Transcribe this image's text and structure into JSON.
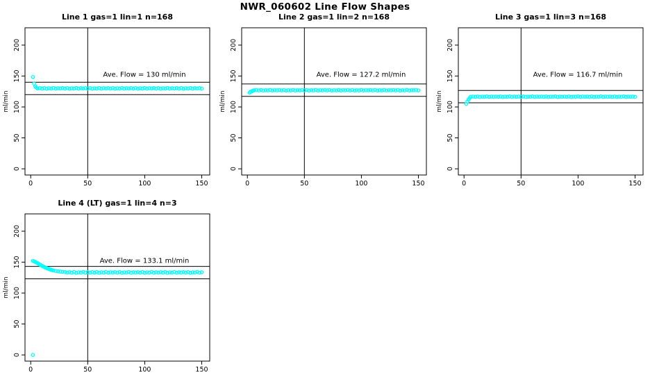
{
  "page": {
    "title": "NWR_060602  Line Flow Shapes"
  },
  "colors": {
    "marker": "#00FFFF",
    "axis": "#000000",
    "background": "#FFFFFF"
  },
  "chart_data": [
    {
      "type": "scatter",
      "title": "Line 1 gas=1 lin=1 n=168",
      "xlabel": "",
      "ylabel": "ml/min",
      "annotation": "Ave. Flow =  130  ml/min",
      "ave_flow": 130,
      "marker": "open-circle",
      "x_ticks": [
        0,
        50,
        100,
        150
      ],
      "y_ticks": [
        0,
        50,
        100,
        150,
        200
      ],
      "xlim": [
        -5,
        157
      ],
      "ylim": [
        -10,
        228
      ],
      "h_ref_lines": [
        140,
        120
      ],
      "v_ref_line": 50,
      "points": [
        [
          2,
          148.5
        ],
        [
          3,
          138
        ],
        [
          4,
          133.5
        ],
        [
          5,
          131.5
        ],
        [
          6,
          130
        ],
        [
          8,
          130.4
        ],
        [
          10,
          129.7
        ],
        [
          12,
          130.6
        ],
        [
          14,
          129.4
        ],
        [
          16,
          130.2
        ],
        [
          18,
          129.8
        ],
        [
          20,
          130.7
        ],
        [
          22,
          129.6
        ],
        [
          24,
          130.3
        ],
        [
          26,
          130
        ],
        [
          28,
          130.4
        ],
        [
          30,
          129.7
        ],
        [
          32,
          130.6
        ],
        [
          34,
          129.4
        ],
        [
          36,
          130.2
        ],
        [
          38,
          129.8
        ],
        [
          40,
          130.7
        ],
        [
          42,
          129.6
        ],
        [
          44,
          130.3
        ],
        [
          46,
          130
        ],
        [
          48,
          130.4
        ],
        [
          50,
          129.7
        ],
        [
          52,
          130.6
        ],
        [
          54,
          129.4
        ],
        [
          56,
          130.2
        ],
        [
          58,
          129.8
        ],
        [
          60,
          130.7
        ],
        [
          62,
          129.6
        ],
        [
          64,
          130.3
        ],
        [
          66,
          130
        ],
        [
          68,
          130.4
        ],
        [
          70,
          129.7
        ],
        [
          72,
          130.6
        ],
        [
          74,
          129.4
        ],
        [
          76,
          130.2
        ],
        [
          78,
          129.8
        ],
        [
          80,
          130.7
        ],
        [
          82,
          129.6
        ],
        [
          84,
          130.3
        ],
        [
          86,
          130
        ],
        [
          88,
          130.4
        ],
        [
          90,
          129.7
        ],
        [
          92,
          130.6
        ],
        [
          94,
          129.4
        ],
        [
          96,
          130.2
        ],
        [
          98,
          129.8
        ],
        [
          100,
          130.7
        ],
        [
          102,
          129.6
        ],
        [
          104,
          130.3
        ],
        [
          106,
          130
        ],
        [
          108,
          130.4
        ],
        [
          110,
          129.7
        ],
        [
          112,
          130.6
        ],
        [
          114,
          129.4
        ],
        [
          116,
          130.2
        ],
        [
          118,
          129.8
        ],
        [
          120,
          130.7
        ],
        [
          122,
          129.6
        ],
        [
          124,
          130.3
        ],
        [
          126,
          130
        ],
        [
          128,
          130.4
        ],
        [
          130,
          129.7
        ],
        [
          132,
          130.6
        ],
        [
          134,
          129.4
        ],
        [
          136,
          130.2
        ],
        [
          138,
          129.8
        ],
        [
          140,
          130.7
        ],
        [
          142,
          129.6
        ],
        [
          144,
          130.3
        ],
        [
          146,
          130
        ],
        [
          148,
          130.4
        ],
        [
          150,
          129.7
        ]
      ]
    },
    {
      "type": "scatter",
      "title": "Line 2 gas=1 lin=2 n=168",
      "xlabel": "",
      "ylabel": "ml/min",
      "annotation": "Ave. Flow =  127.2  ml/min",
      "ave_flow": 127.2,
      "marker": "open-circle",
      "x_ticks": [
        0,
        50,
        100,
        150
      ],
      "y_ticks": [
        0,
        50,
        100,
        150,
        200
      ],
      "xlim": [
        -5,
        157
      ],
      "ylim": [
        -10,
        228
      ],
      "h_ref_lines": [
        137.2,
        117.2
      ],
      "v_ref_line": 50,
      "points": [
        [
          2,
          123
        ],
        [
          3,
          124.5
        ],
        [
          4,
          125.5
        ],
        [
          5,
          126.3
        ],
        [
          6,
          127
        ],
        [
          8,
          127.3
        ],
        [
          10,
          126.8
        ],
        [
          12,
          127.4
        ],
        [
          14,
          126.6
        ],
        [
          16,
          127.1
        ],
        [
          18,
          126.9
        ],
        [
          20,
          127.5
        ],
        [
          22,
          126.7
        ],
        [
          24,
          127.2
        ],
        [
          26,
          127
        ],
        [
          28,
          127.3
        ],
        [
          30,
          126.8
        ],
        [
          32,
          127.4
        ],
        [
          34,
          126.6
        ],
        [
          36,
          127.1
        ],
        [
          38,
          126.9
        ],
        [
          40,
          127.5
        ],
        [
          42,
          126.7
        ],
        [
          44,
          127.2
        ],
        [
          46,
          127
        ],
        [
          48,
          127.3
        ],
        [
          50,
          126.8
        ],
        [
          52,
          127.4
        ],
        [
          54,
          126.6
        ],
        [
          56,
          127.1
        ],
        [
          58,
          126.9
        ],
        [
          60,
          127.5
        ],
        [
          62,
          126.7
        ],
        [
          64,
          127.2
        ],
        [
          66,
          127
        ],
        [
          68,
          127.3
        ],
        [
          70,
          126.8
        ],
        [
          72,
          127.4
        ],
        [
          74,
          126.6
        ],
        [
          76,
          127.1
        ],
        [
          78,
          126.9
        ],
        [
          80,
          127.5
        ],
        [
          82,
          126.7
        ],
        [
          84,
          127.2
        ],
        [
          86,
          127
        ],
        [
          88,
          127.3
        ],
        [
          90,
          126.8
        ],
        [
          92,
          127.4
        ],
        [
          94,
          126.6
        ],
        [
          96,
          127.1
        ],
        [
          98,
          126.9
        ],
        [
          100,
          127.5
        ],
        [
          102,
          126.7
        ],
        [
          104,
          127.2
        ],
        [
          106,
          127
        ],
        [
          108,
          127.3
        ],
        [
          110,
          126.8
        ],
        [
          112,
          127.4
        ],
        [
          114,
          126.6
        ],
        [
          116,
          127.1
        ],
        [
          118,
          126.9
        ],
        [
          120,
          127.5
        ],
        [
          122,
          126.7
        ],
        [
          124,
          127.2
        ],
        [
          126,
          127
        ],
        [
          128,
          127.3
        ],
        [
          130,
          126.8
        ],
        [
          132,
          127.4
        ],
        [
          134,
          126.6
        ],
        [
          136,
          127.1
        ],
        [
          138,
          126.9
        ],
        [
          140,
          127.5
        ],
        [
          142,
          126.7
        ],
        [
          144,
          127.2
        ],
        [
          146,
          127
        ],
        [
          148,
          127.3
        ],
        [
          150,
          126.8
        ]
      ]
    },
    {
      "type": "scatter",
      "title": "Line 3 gas=1 lin=3 n=168",
      "xlabel": "",
      "ylabel": "ml/min",
      "annotation": "Ave. Flow =  116.7  ml/min",
      "ave_flow": 116.7,
      "marker": "open-circle",
      "x_ticks": [
        0,
        50,
        100,
        150
      ],
      "y_ticks": [
        0,
        50,
        100,
        150,
        200
      ],
      "xlim": [
        -5,
        157
      ],
      "ylim": [
        -10,
        228
      ],
      "h_ref_lines": [
        126.7,
        106.7
      ],
      "v_ref_line": 50,
      "points": [
        [
          2,
          105
        ],
        [
          3,
          109
        ],
        [
          4,
          112
        ],
        [
          5,
          114.5
        ],
        [
          6,
          116.5
        ],
        [
          8,
          116.8
        ],
        [
          10,
          116.3
        ],
        [
          12,
          116.9
        ],
        [
          14,
          116.1
        ],
        [
          16,
          116.6
        ],
        [
          18,
          116.4
        ],
        [
          20,
          117
        ],
        [
          22,
          116.2
        ],
        [
          24,
          116.7
        ],
        [
          26,
          116.5
        ],
        [
          28,
          116.8
        ],
        [
          30,
          116.3
        ],
        [
          32,
          116.9
        ],
        [
          34,
          116.1
        ],
        [
          36,
          116.6
        ],
        [
          38,
          116.4
        ],
        [
          40,
          117
        ],
        [
          42,
          116.2
        ],
        [
          44,
          116.7
        ],
        [
          46,
          116.5
        ],
        [
          48,
          116.8
        ],
        [
          50,
          116.3
        ],
        [
          52,
          116.9
        ],
        [
          54,
          116.1
        ],
        [
          56,
          116.6
        ],
        [
          58,
          116.4
        ],
        [
          60,
          117
        ],
        [
          62,
          116.2
        ],
        [
          64,
          116.7
        ],
        [
          66,
          116.5
        ],
        [
          68,
          116.8
        ],
        [
          70,
          116.3
        ],
        [
          72,
          116.9
        ],
        [
          74,
          116.1
        ],
        [
          76,
          116.6
        ],
        [
          78,
          116.4
        ],
        [
          80,
          117
        ],
        [
          82,
          116.2
        ],
        [
          84,
          116.7
        ],
        [
          86,
          116.5
        ],
        [
          88,
          116.8
        ],
        [
          90,
          116.3
        ],
        [
          92,
          116.9
        ],
        [
          94,
          116.1
        ],
        [
          96,
          116.6
        ],
        [
          98,
          116.4
        ],
        [
          100,
          117
        ],
        [
          102,
          116.2
        ],
        [
          104,
          116.7
        ],
        [
          106,
          116.5
        ],
        [
          108,
          116.8
        ],
        [
          110,
          116.3
        ],
        [
          112,
          116.9
        ],
        [
          114,
          116.1
        ],
        [
          116,
          116.6
        ],
        [
          118,
          116.4
        ],
        [
          120,
          117
        ],
        [
          122,
          116.2
        ],
        [
          124,
          116.7
        ],
        [
          126,
          116.5
        ],
        [
          128,
          116.8
        ],
        [
          130,
          116.3
        ],
        [
          132,
          116.9
        ],
        [
          134,
          116.1
        ],
        [
          136,
          116.6
        ],
        [
          138,
          116.4
        ],
        [
          140,
          117
        ],
        [
          142,
          116.2
        ],
        [
          144,
          116.7
        ],
        [
          146,
          116.5
        ],
        [
          148,
          116.8
        ],
        [
          150,
          116.3
        ]
      ]
    },
    {
      "type": "scatter",
      "title": "Line 4 (LT) gas=1 lin=4 n=3",
      "xlabel": "",
      "ylabel": "ml/min",
      "annotation": "Ave. Flow =  133.1  ml/min",
      "ave_flow": 133.1,
      "marker": "open-circle",
      "x_ticks": [
        0,
        50,
        100,
        150
      ],
      "y_ticks": [
        0,
        50,
        100,
        150,
        200
      ],
      "xlim": [
        -5,
        157
      ],
      "ylim": [
        -10,
        228
      ],
      "h_ref_lines": [
        143.1,
        123.1
      ],
      "v_ref_line": 50,
      "points": [
        [
          2,
          0
        ],
        [
          2,
          152
        ],
        [
          3,
          151.2
        ],
        [
          4,
          150.3
        ],
        [
          5,
          149.4
        ],
        [
          6,
          148.4
        ],
        [
          7,
          147.3
        ],
        [
          8,
          146.2
        ],
        [
          9,
          145.1
        ],
        [
          10,
          144
        ],
        [
          11,
          143
        ],
        [
          12,
          142
        ],
        [
          13,
          141.2
        ],
        [
          14,
          140.4
        ],
        [
          15,
          139.6
        ],
        [
          16,
          138.9
        ],
        [
          17,
          138.2
        ],
        [
          18,
          137.6
        ],
        [
          19,
          137
        ],
        [
          20,
          136.5
        ],
        [
          22,
          135.8
        ],
        [
          24,
          135.2
        ],
        [
          26,
          134.7
        ],
        [
          28,
          134.3
        ],
        [
          30,
          134
        ],
        [
          32,
          133.4
        ],
        [
          34,
          133.8
        ],
        [
          36,
          133.1
        ],
        [
          38,
          134
        ],
        [
          40,
          132.8
        ],
        [
          42,
          133.6
        ],
        [
          44,
          133.2
        ],
        [
          46,
          134.1
        ],
        [
          48,
          133
        ],
        [
          50,
          133.7
        ],
        [
          52,
          133.4
        ],
        [
          54,
          133.8
        ],
        [
          56,
          133.1
        ],
        [
          58,
          134
        ],
        [
          60,
          132.8
        ],
        [
          62,
          133.6
        ],
        [
          64,
          133.2
        ],
        [
          66,
          134.1
        ],
        [
          68,
          133
        ],
        [
          70,
          133.7
        ],
        [
          72,
          133.4
        ],
        [
          74,
          133.8
        ],
        [
          76,
          133.1
        ],
        [
          78,
          134
        ],
        [
          80,
          132.8
        ],
        [
          82,
          133.6
        ],
        [
          84,
          133.2
        ],
        [
          86,
          134.1
        ],
        [
          88,
          133
        ],
        [
          90,
          133.7
        ],
        [
          92,
          133.4
        ],
        [
          94,
          133.8
        ],
        [
          96,
          133.1
        ],
        [
          98,
          134
        ],
        [
          100,
          132.8
        ],
        [
          102,
          133.6
        ],
        [
          104,
          133.2
        ],
        [
          106,
          134.1
        ],
        [
          108,
          133
        ],
        [
          110,
          133.7
        ],
        [
          112,
          133.4
        ],
        [
          114,
          133.8
        ],
        [
          116,
          133.1
        ],
        [
          118,
          134
        ],
        [
          120,
          132.8
        ],
        [
          122,
          133.6
        ],
        [
          124,
          133.2
        ],
        [
          126,
          134.1
        ],
        [
          128,
          133
        ],
        [
          130,
          133.7
        ],
        [
          132,
          133.4
        ],
        [
          134,
          133.8
        ],
        [
          136,
          133.1
        ],
        [
          138,
          134
        ],
        [
          140,
          132.8
        ],
        [
          142,
          133.6
        ],
        [
          144,
          133.2
        ],
        [
          146,
          134.1
        ],
        [
          148,
          133
        ],
        [
          150,
          133.7
        ]
      ]
    }
  ]
}
